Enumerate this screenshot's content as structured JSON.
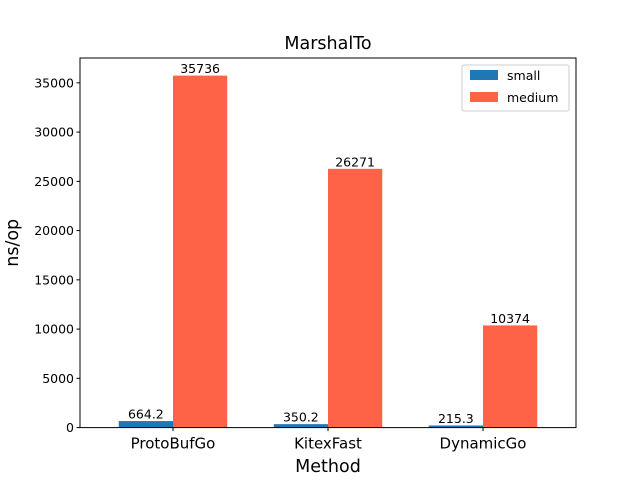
{
  "chart_data": {
    "type": "bar",
    "title": "MarshalTo",
    "xlabel": "Method",
    "ylabel": "ns/op",
    "categories": [
      "ProtoBufGo",
      "KitexFast",
      "DynamicGo"
    ],
    "series": [
      {
        "name": "small",
        "color": "#1f77b4",
        "values": [
          664.2,
          350.2,
          215.3
        ],
        "labels": [
          "664.2",
          "350.2",
          "215.3"
        ]
      },
      {
        "name": "medium",
        "color": "#ff6347",
        "values": [
          35736,
          26271,
          10374
        ],
        "labels": [
          "35736",
          "26271",
          "10374"
        ]
      }
    ],
    "ylim": [
      0,
      37522.8
    ],
    "yticks": [
      0,
      5000,
      10000,
      15000,
      20000,
      25000,
      30000,
      35000
    ],
    "grid": false,
    "legend_position": "top-right"
  }
}
